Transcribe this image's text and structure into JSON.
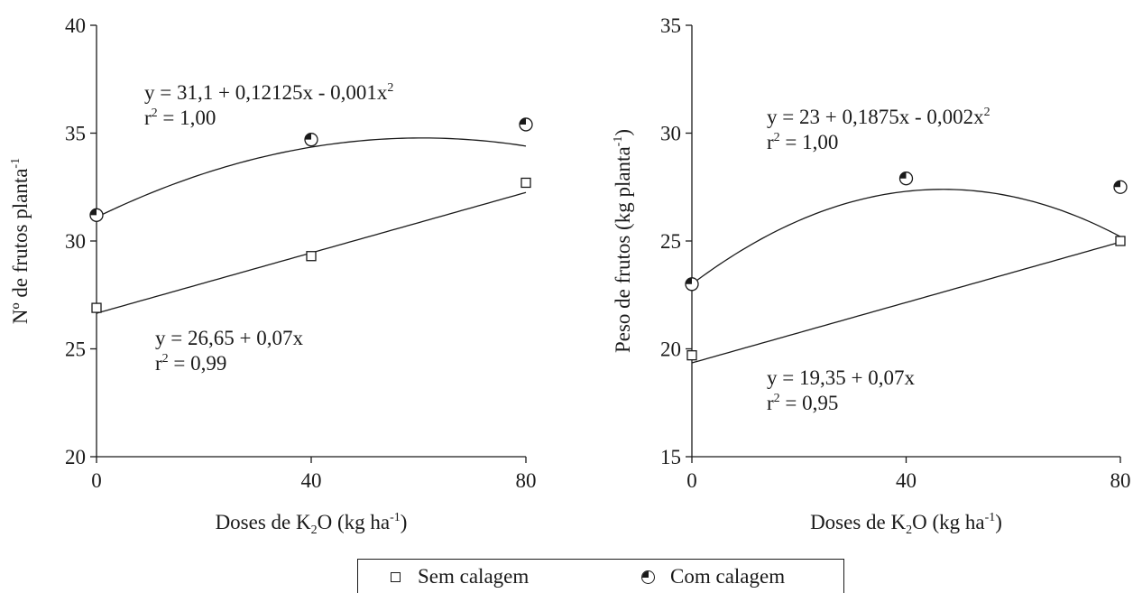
{
  "chart_data": [
    {
      "type": "scatter",
      "xlabel_main": "Doses de K",
      "xlabel_sub": "2",
      "xlabel_mid": "O (kg ha",
      "xlabel_sup": "-1",
      "xlabel_end": ")",
      "ylabel_main": "Nº de frutos planta",
      "ylabel_sup": "-1",
      "ylabel_end": "",
      "xlim": [
        0,
        80
      ],
      "ylim": [
        20,
        40
      ],
      "xticks": [
        "0",
        "40",
        "80"
      ],
      "yticks": [
        "20",
        "25",
        "30",
        "35",
        "40"
      ],
      "x": [
        0,
        40,
        80
      ],
      "series": [
        {
          "name": "Sem calagem",
          "marker": "square",
          "values": [
            26.9,
            29.3,
            32.7
          ],
          "fit": {
            "kind": "linear",
            "a": 26.65,
            "b": 0.07,
            "c": 0
          },
          "equation": "y = 26,65 + 0,07x",
          "r2_label": "r",
          "r2_value": " = 0,99"
        },
        {
          "name": "Com calagem",
          "marker": "half-filled-circle",
          "values": [
            31.2,
            34.7,
            35.4
          ],
          "fit": {
            "kind": "quadratic",
            "a": 31.1,
            "b": 0.12125,
            "c": -0.001
          },
          "equation": "y = 31,1 + 0,12125x - 0,001x",
          "r2_label": "r",
          "r2_value": " = 1,00"
        }
      ]
    },
    {
      "type": "scatter",
      "xlabel_main": "Doses de K",
      "xlabel_sub": "2",
      "xlabel_mid": "O (kg ha",
      "xlabel_sup": "-1",
      "xlabel_end": ")",
      "ylabel_main": "Peso de frutos (kg planta",
      "ylabel_sup": "-1",
      "ylabel_end": ")",
      "xlim": [
        0,
        80
      ],
      "ylim": [
        15,
        35
      ],
      "xticks": [
        "0",
        "40",
        "80"
      ],
      "yticks": [
        "15",
        "20",
        "25",
        "30",
        "35"
      ],
      "x": [
        0,
        40,
        80
      ],
      "series": [
        {
          "name": "Sem calagem",
          "marker": "square",
          "values": [
            19.7,
            null,
            25.0
          ],
          "fit": {
            "kind": "linear",
            "a": 19.35,
            "b": 0.07,
            "c": 0
          },
          "equation": "y = 19,35 + 0,07x",
          "r2_label": "r",
          "r2_value": " = 0,95"
        },
        {
          "name": "Com calagem",
          "marker": "half-filled-circle",
          "values": [
            23.0,
            27.9,
            27.5
          ],
          "fit": {
            "kind": "quadratic",
            "a": 23,
            "b": 0.1875,
            "c": -0.002
          },
          "equation": "y = 23 + 0,1875x - 0,002x",
          "r2_label": "r",
          "r2_value": " = 1,00"
        }
      ]
    }
  ],
  "legend": {
    "items": [
      {
        "label": "Sem calagem",
        "marker": "square"
      },
      {
        "label": "Com calagem",
        "marker": "half-filled-circle"
      }
    ]
  }
}
